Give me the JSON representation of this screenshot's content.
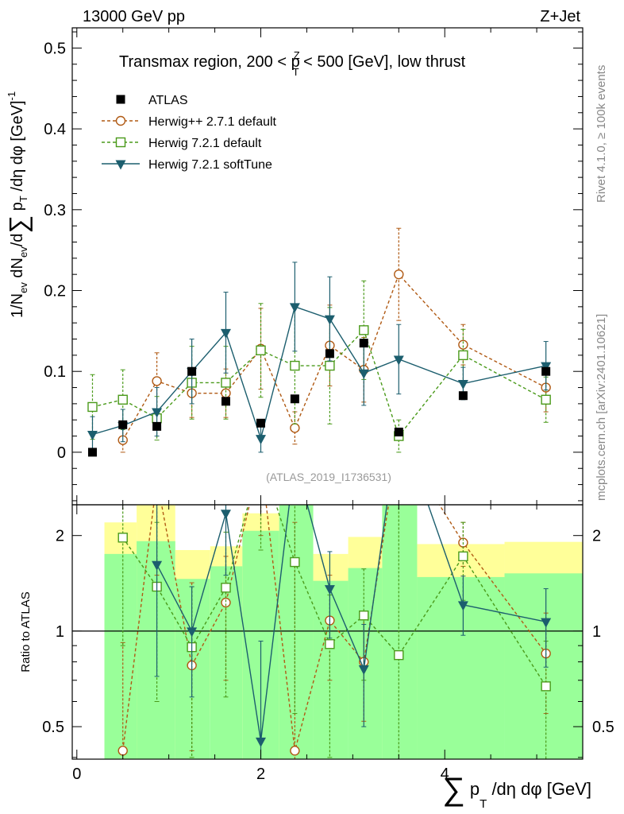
{
  "header": {
    "left": "13000 GeV pp",
    "right": "Z+Jet"
  },
  "side": {
    "rivet": "Rivet 4.1.0, ≥ 100k events",
    "mcplots": "mcplots.cern.ch [arXiv:2401.10621]"
  },
  "colors": {
    "atlas": "#000000",
    "herwigpp": "#b05a14",
    "herwig721": "#4a9a1a",
    "softtune": "#1c5e6e",
    "band_yellow": "#ffff99",
    "band_green": "#99ff99"
  },
  "chart_data": [
    {
      "type": "scatter",
      "panel": "main",
      "title": "Transmax region, 200 < p_T^Z < 500 [GeV], low thrust",
      "title_parts": {
        "pre": "Transmax region, 200 < p",
        "sup": "Z",
        "sub": "T",
        "post": " < 500 [GeV], low thrust"
      },
      "watermark": "(ATLAS_2019_I1736531)",
      "ylabel": "1/N_ev dN_ev/d∑ p_T /dη dφ  [GeV]^-1",
      "ylabel_parts": {
        "a": "1/N",
        "a_sub": "ev",
        "b": " dN",
        "b_sub": "ev",
        "c": "/d",
        "sum": "∑",
        "d": " p",
        "d_sub": "T",
        "e": " /dη dφ  [GeV]",
        "e_sup": "-1"
      },
      "xlim": [
        -0.05,
        5.5
      ],
      "ylim": [
        -0.065,
        0.525
      ],
      "yticks": [
        0,
        0.1,
        0.2,
        0.3,
        0.4,
        0.5
      ],
      "ytick_labels": [
        "0",
        "0.1",
        "0.2",
        "0.3",
        "0.4",
        "0.5"
      ],
      "legend": [
        {
          "key": "atlas",
          "label": "ATLAS"
        },
        {
          "key": "herwigpp",
          "label": "Herwig++ 2.7.1 default"
        },
        {
          "key": "herwig721",
          "label": "Herwig 7.2.1 default"
        },
        {
          "key": "softtune",
          "label": "Herwig 7.2.1 softTune"
        }
      ],
      "series": [
        {
          "key": "atlas",
          "name": "ATLAS",
          "marker": "square-filled",
          "points": [
            [
              0.17,
              0.0
            ],
            [
              0.5,
              0.034
            ],
            [
              0.87,
              0.032
            ],
            [
              1.25,
              0.1
            ],
            [
              1.62,
              0.063
            ],
            [
              2.0,
              0.036
            ],
            [
              2.37,
              0.066
            ],
            [
              2.75,
              0.122
            ],
            [
              3.12,
              0.135
            ],
            [
              3.5,
              0.025
            ],
            [
              4.2,
              0.07
            ],
            [
              5.1,
              0.1
            ]
          ]
        },
        {
          "key": "herwigpp",
          "name": "Herwig++ 2.7.1 default",
          "marker": "circle-open",
          "line": "dashed",
          "points": [
            [
              0.5,
              0.015,
              0.015
            ],
            [
              0.87,
              0.088,
              0.035
            ],
            [
              1.25,
              0.073,
              0.03
            ],
            [
              1.62,
              0.073,
              0.03
            ],
            [
              2.0,
              0.128,
              0.05
            ],
            [
              2.37,
              0.03,
              0.02
            ],
            [
              2.75,
              0.132,
              0.05
            ],
            [
              3.12,
              0.102,
              0.04
            ],
            [
              3.5,
              0.22,
              0.057
            ],
            [
              4.2,
              0.133,
              0.025
            ],
            [
              5.1,
              0.08,
              0.03
            ]
          ]
        },
        {
          "key": "herwig721",
          "name": "Herwig 7.2.1 default",
          "marker": "square-open",
          "line": "dashed",
          "points": [
            [
              0.17,
              0.056,
              0.04
            ],
            [
              0.5,
              0.065,
              0.037
            ],
            [
              0.87,
              0.042,
              0.027
            ],
            [
              1.25,
              0.086,
              0.045
            ],
            [
              1.62,
              0.086,
              0.045
            ],
            [
              2.0,
              0.126,
              0.058
            ],
            [
              2.37,
              0.107,
              0.072
            ],
            [
              2.75,
              0.107,
              0.072
            ],
            [
              3.12,
              0.151,
              0.061
            ],
            [
              3.5,
              0.02,
              0.02
            ],
            [
              4.2,
              0.12,
              0.032
            ],
            [
              5.1,
              0.065,
              0.028
            ]
          ]
        },
        {
          "key": "softtune",
          "name": "Herwig 7.2.1 softTune",
          "marker": "triangle-down-filled",
          "line": "solid",
          "points": [
            [
              0.17,
              0.022,
              0.022
            ],
            [
              0.5,
              0.033,
              0.02
            ],
            [
              0.87,
              0.05,
              0.03
            ],
            [
              1.25,
              0.1,
              0.04
            ],
            [
              1.62,
              0.148,
              0.05
            ],
            [
              2.0,
              0.017,
              0.017
            ],
            [
              2.37,
              0.18,
              0.055
            ],
            [
              2.75,
              0.165,
              0.052
            ],
            [
              3.12,
              0.098,
              0.04
            ],
            [
              3.5,
              0.115,
              0.043
            ],
            [
              4.2,
              0.085,
              0.02
            ],
            [
              5.1,
              0.107,
              0.03
            ]
          ]
        }
      ]
    },
    {
      "type": "line",
      "panel": "ratio",
      "ylabel": "Ratio to ATLAS",
      "xlabel": "∑ p_T /dη dφ [GeV]",
      "xlabel_parts": {
        "sum": "∑",
        "p": " p",
        "p_sub": "T",
        "rest": " /dη dφ [GeV]"
      },
      "xlim": [
        -0.05,
        5.5
      ],
      "ylim": [
        0.395,
        2.5
      ],
      "yscale": "log",
      "yticks": [
        0.5,
        1,
        2
      ],
      "ytick_labels": [
        "0.5",
        "1",
        "2"
      ],
      "xticks": [
        0,
        2,
        4
      ],
      "xtick_labels": [
        "0",
        "2",
        "4"
      ],
      "reference": 1,
      "bands": [
        {
          "x0": 0.3,
          "x1": 0.65,
          "y_lo": 0.395,
          "y_hi": 2.2,
          "g_lo": 0.395,
          "g_hi": 1.75
        },
        {
          "x0": 0.65,
          "x1": 1.07,
          "y_lo": 0.395,
          "y_hi": 2.5,
          "g_lo": 0.395,
          "g_hi": 1.92
        },
        {
          "x0": 1.07,
          "x1": 1.45,
          "y_lo": 0.66,
          "y_hi": 1.8,
          "g_lo": 0.395,
          "g_hi": 1.46
        },
        {
          "x0": 1.45,
          "x1": 1.8,
          "y_lo": 0.54,
          "y_hi": 1.85,
          "g_lo": 0.395,
          "g_hi": 1.6
        },
        {
          "x0": 1.8,
          "x1": 2.2,
          "y_lo": 0.395,
          "y_hi": 2.35,
          "g_lo": 0.395,
          "g_hi": 2.07
        },
        {
          "x0": 2.2,
          "x1": 2.57,
          "y_lo": 0.395,
          "y_hi": 2.5,
          "g_lo": 0.395,
          "g_hi": 2.5
        },
        {
          "x0": 2.57,
          "x1": 2.95,
          "y_lo": 0.66,
          "y_hi": 1.75,
          "g_lo": 0.395,
          "g_hi": 1.44
        },
        {
          "x0": 2.95,
          "x1": 3.32,
          "y_lo": 0.52,
          "y_hi": 1.98,
          "g_lo": 0.395,
          "g_hi": 1.58
        },
        {
          "x0": 3.32,
          "x1": 3.7,
          "y_lo": 0.395,
          "y_hi": 2.5,
          "g_lo": 0.395,
          "g_hi": 2.5
        },
        {
          "x0": 3.7,
          "x1": 4.65,
          "y_lo": 0.59,
          "y_hi": 1.88,
          "g_lo": 0.395,
          "g_hi": 1.48
        },
        {
          "x0": 4.65,
          "x1": 5.5,
          "y_lo": 0.57,
          "y_hi": 1.91,
          "g_lo": 0.395,
          "g_hi": 1.52
        }
      ],
      "series": [
        {
          "key": "herwigpp",
          "name": "Herwig++ 2.7.1 default",
          "line": "dashed",
          "points": [
            [
              0.5,
              0.42,
              0.395,
              0.92
            ],
            [
              0.87,
              3.0,
              1.5,
              3.0
            ],
            [
              1.25,
              0.78,
              0.42,
              1.42
            ],
            [
              1.62,
              1.23,
              0.7,
              1.72
            ],
            [
              2.0,
              3.5,
              2.0,
              3.5
            ],
            [
              2.37,
              0.42,
              0.395,
              2.2
            ],
            [
              2.75,
              1.08,
              0.7,
              1.5
            ],
            [
              3.12,
              0.8,
              0.52,
              1.1
            ],
            [
              3.5,
              4.0,
              3.0,
              4.0
            ],
            [
              4.2,
              1.9,
              1.6,
              2.2
            ],
            [
              5.1,
              0.85,
              0.55,
              1.14
            ]
          ]
        },
        {
          "key": "herwig721",
          "name": "Herwig 7.2.1 default",
          "line": "dashed",
          "points": [
            [
              0.5,
              1.97,
              0.9,
              3.0
            ],
            [
              0.87,
              1.38,
              0.6,
              2.2
            ],
            [
              1.25,
              0.89,
              0.4,
              1.38
            ],
            [
              1.62,
              1.37,
              0.62,
              2.05
            ],
            [
              2.0,
              3.5,
              1.8,
              3.5
            ],
            [
              2.37,
              1.65,
              0.55,
              2.7
            ],
            [
              2.75,
              0.91,
              0.4,
              1.3
            ],
            [
              3.12,
              1.12,
              0.7,
              1.57
            ],
            [
              3.5,
              0.84,
              0.395,
              3.0
            ],
            [
              4.2,
              1.72,
              1.25,
              2.2
            ],
            [
              5.1,
              0.67,
              0.39,
              0.93
            ]
          ]
        },
        {
          "key": "softtune",
          "name": "Herwig 7.2.1 softTune",
          "line": "solid",
          "points": [
            [
              0.87,
              1.62,
              0.72,
              2.5
            ],
            [
              1.25,
              1.0,
              0.62,
              1.38
            ],
            [
              1.62,
              2.35,
              1.5,
              3.0
            ],
            [
              2.0,
              0.45,
              0.395,
              0.93
            ],
            [
              2.37,
              3.5,
              2.5,
              3.5
            ],
            [
              2.75,
              1.36,
              0.95,
              1.78
            ],
            [
              3.12,
              0.76,
              0.5,
              1.05
            ],
            [
              3.5,
              4.6,
              3.0,
              5.0
            ],
            [
              4.2,
              1.21,
              0.97,
              1.49
            ],
            [
              5.1,
              1.07,
              0.77,
              1.36
            ]
          ]
        }
      ]
    }
  ]
}
